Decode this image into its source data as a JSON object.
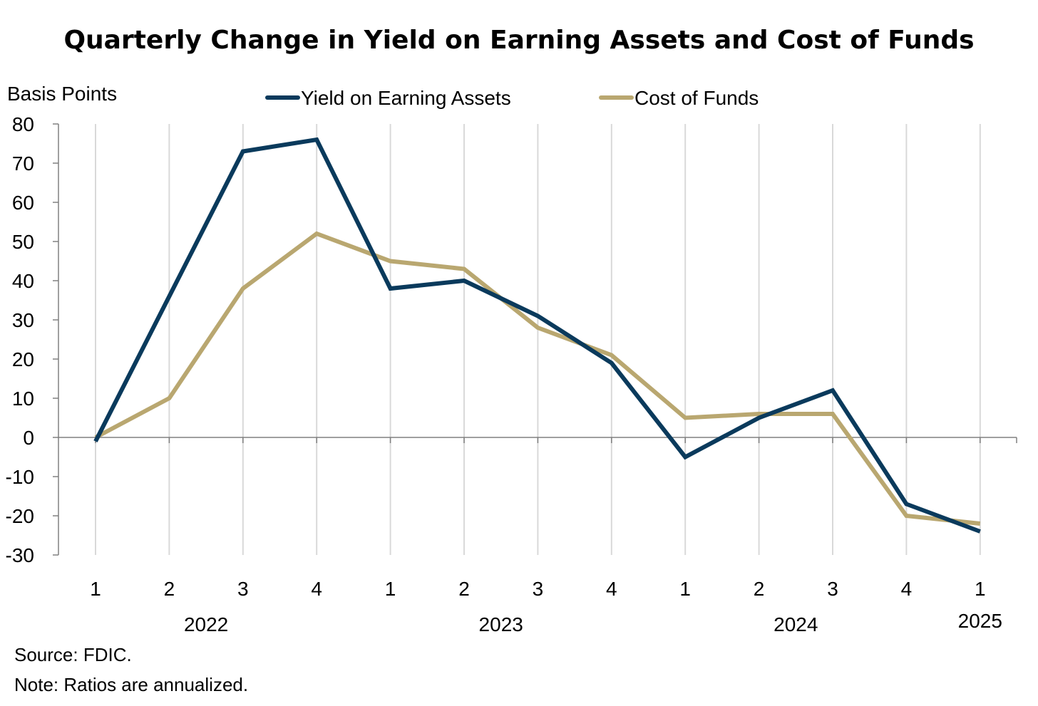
{
  "colors": {
    "yield": "#0a3a5c",
    "cost": "#b9a770",
    "grid": "#d9d9d9",
    "axis": "#808080"
  },
  "chart_data": {
    "type": "line",
    "title": "Quarterly Change in Yield on Earning Assets and Cost of Funds",
    "ylabel": "Basis Points",
    "xlabel": "",
    "ylim": [
      -30,
      80
    ],
    "yticks": [
      "80",
      "70",
      "60",
      "50",
      "40",
      "30",
      "20",
      "10",
      "0",
      "-10",
      "-20",
      "-30"
    ],
    "categories": [
      "1",
      "2",
      "3",
      "4",
      "1",
      "2",
      "3",
      "4",
      "1",
      "2",
      "3",
      "4",
      "1"
    ],
    "year_labels": [
      {
        "label": "2022",
        "quarter_index": 1.5
      },
      {
        "label": "2023",
        "quarter_index": 5.5
      },
      {
        "label": "2024",
        "quarter_index": 9.5
      },
      {
        "label": "2025",
        "quarter_index": 12
      }
    ],
    "grid": "vertical",
    "legend": "top-center",
    "series": [
      {
        "name": "Yield on Earning Assets",
        "color": "#0a3a5c",
        "values": [
          -1,
          36,
          73,
          76,
          38,
          40,
          31,
          19,
          -5,
          5,
          12,
          -17,
          -24
        ]
      },
      {
        "name": "Cost of Funds",
        "color": "#b9a770",
        "values": [
          0,
          10,
          38,
          52,
          45,
          43,
          28,
          21,
          5,
          6,
          6,
          -20,
          -22
        ]
      }
    ],
    "source": "Source: FDIC.",
    "note": "Note: Ratios are annualized."
  }
}
